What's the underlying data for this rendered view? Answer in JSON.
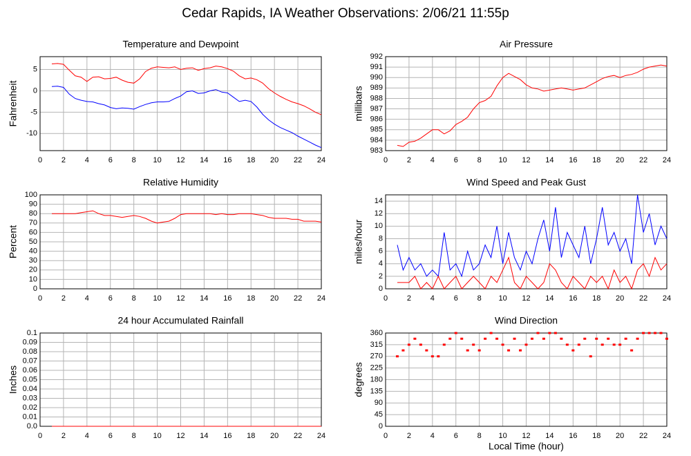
{
  "title": "Cedar Rapids, IA Weather Observations: 2/06/21 11:55p",
  "chart_data": [
    {
      "type": "line",
      "title": "Temperature and Dewpoint",
      "ylabel": "Fahrenheit",
      "x": [
        1,
        1.5,
        2,
        2.5,
        3,
        3.5,
        4,
        4.5,
        5,
        5.5,
        6,
        6.5,
        7,
        7.5,
        8,
        8.5,
        9,
        9.5,
        10,
        10.5,
        11,
        11.5,
        12,
        12.5,
        13,
        13.5,
        14,
        14.5,
        15,
        15.5,
        16,
        16.5,
        17,
        17.5,
        18,
        18.5,
        19,
        19.5,
        20,
        20.5,
        21,
        21.5,
        22,
        22.5,
        23,
        23.5,
        24
      ],
      "series": [
        {
          "color": "#ff0000",
          "values": [
            6.3,
            6.4,
            6.2,
            4.8,
            3.5,
            3.2,
            2.2,
            3.2,
            3.3,
            2.8,
            2.9,
            3.2,
            2.5,
            2.0,
            1.8,
            2.8,
            4.5,
            5.3,
            5.6,
            5.5,
            5.4,
            5.6,
            5.0,
            5.3,
            5.4,
            4.8,
            5.2,
            5.4,
            5.8,
            5.6,
            5.2,
            4.6,
            3.5,
            2.8,
            3.0,
            2.6,
            1.8,
            0.5,
            -0.5,
            -1.3,
            -2.0,
            -2.6,
            -3.0,
            -3.5,
            -4.2,
            -5.0,
            -5.6
          ]
        },
        {
          "color": "#0000ff",
          "values": [
            1.0,
            1.1,
            0.8,
            -0.8,
            -1.8,
            -2.2,
            -2.5,
            -2.6,
            -3.0,
            -3.3,
            -3.9,
            -4.2,
            -4.0,
            -4.1,
            -4.3,
            -3.7,
            -3.2,
            -2.8,
            -2.6,
            -2.6,
            -2.5,
            -1.8,
            -1.2,
            -0.2,
            0.0,
            -0.6,
            -0.5,
            0.0,
            0.3,
            -0.3,
            -0.5,
            -1.5,
            -2.5,
            -2.2,
            -2.5,
            -3.8,
            -5.5,
            -6.8,
            -7.8,
            -8.6,
            -9.2,
            -9.8,
            -10.6,
            -11.3,
            -12.0,
            -12.7,
            -13.3
          ]
        }
      ],
      "xlim": [
        0,
        24
      ],
      "xticks": [
        0,
        2,
        4,
        6,
        8,
        10,
        12,
        14,
        16,
        18,
        20,
        22,
        24
      ],
      "ylim": [
        -14,
        8
      ],
      "yticks": [
        -10,
        -5,
        0,
        5
      ],
      "grid": true
    },
    {
      "type": "line",
      "title": "Air Pressure",
      "ylabel": "millibars",
      "x": [
        1,
        1.5,
        2,
        2.5,
        3,
        3.5,
        4,
        4.5,
        5,
        5.5,
        6,
        6.5,
        7,
        7.5,
        8,
        8.5,
        9,
        9.5,
        10,
        10.5,
        11,
        11.5,
        12,
        12.5,
        13,
        13.5,
        14,
        14.5,
        15,
        15.5,
        16,
        16.5,
        17,
        17.5,
        18,
        18.5,
        19,
        19.5,
        20,
        20.5,
        21,
        21.5,
        22,
        22.5,
        23,
        23.5,
        24
      ],
      "series": [
        {
          "color": "#ff0000",
          "values": [
            983.5,
            983.4,
            983.8,
            983.9,
            984.2,
            984.6,
            985.0,
            985.0,
            984.6,
            984.9,
            985.5,
            985.8,
            986.2,
            987.0,
            987.6,
            987.8,
            988.2,
            989.2,
            990.0,
            990.4,
            990.1,
            989.8,
            989.3,
            989.0,
            988.9,
            988.7,
            988.8,
            988.9,
            989.0,
            988.9,
            988.8,
            988.9,
            989.0,
            989.3,
            989.6,
            989.9,
            990.1,
            990.2,
            990.0,
            990.2,
            990.3,
            990.5,
            990.8,
            991.0,
            991.1,
            991.2,
            991.1
          ]
        }
      ],
      "xlim": [
        0,
        24
      ],
      "xticks": [
        0,
        2,
        4,
        6,
        8,
        10,
        12,
        14,
        16,
        18,
        20,
        22,
        24
      ],
      "ylim": [
        983,
        992
      ],
      "yticks": [
        983,
        984,
        985,
        986,
        987,
        988,
        989,
        990,
        991,
        992
      ],
      "grid": true
    },
    {
      "type": "line",
      "title": "Relative Humidity",
      "ylabel": "Percent",
      "x": [
        1,
        1.5,
        2,
        2.5,
        3,
        3.5,
        4,
        4.5,
        5,
        5.5,
        6,
        6.5,
        7,
        7.5,
        8,
        8.5,
        9,
        9.5,
        10,
        10.5,
        11,
        11.5,
        12,
        12.5,
        13,
        13.5,
        14,
        14.5,
        15,
        15.5,
        16,
        16.5,
        17,
        17.5,
        18,
        18.5,
        19,
        19.5,
        20,
        20.5,
        21,
        21.5,
        22,
        22.5,
        23,
        23.5,
        24
      ],
      "series": [
        {
          "color": "#ff0000",
          "values": [
            80,
            80,
            80,
            80,
            80,
            81,
            82,
            83,
            80,
            78,
            78,
            77,
            76,
            77,
            78,
            77,
            75,
            72,
            70,
            71,
            72,
            75,
            79,
            80,
            80,
            80,
            80,
            80,
            79,
            80,
            79,
            79,
            80,
            80,
            80,
            79,
            78,
            76,
            75,
            75,
            75,
            74,
            74,
            72,
            72,
            72,
            71
          ]
        }
      ],
      "xlim": [
        0,
        24
      ],
      "xticks": [
        0,
        2,
        4,
        6,
        8,
        10,
        12,
        14,
        16,
        18,
        20,
        22,
        24
      ],
      "ylim": [
        0,
        100
      ],
      "yticks": [
        0,
        10,
        20,
        30,
        40,
        50,
        60,
        70,
        80,
        90,
        100
      ],
      "grid": true
    },
    {
      "type": "line",
      "title": "Wind Speed and Peak Gust",
      "ylabel": "miles/hour",
      "x": [
        1,
        1.5,
        2,
        2.5,
        3,
        3.5,
        4,
        4.5,
        5,
        5.5,
        6,
        6.5,
        7,
        7.5,
        8,
        8.5,
        9,
        9.5,
        10,
        10.5,
        11,
        11.5,
        12,
        12.5,
        13,
        13.5,
        14,
        14.5,
        15,
        15.5,
        16,
        16.5,
        17,
        17.5,
        18,
        18.5,
        19,
        19.5,
        20,
        20.5,
        21,
        21.5,
        22,
        22.5,
        23,
        23.5,
        24
      ],
      "series": [
        {
          "color": "#0000ff",
          "values": [
            7,
            3,
            5,
            3,
            4,
            2,
            3,
            2,
            9,
            3,
            4,
            2,
            6,
            3,
            4,
            7,
            5,
            10,
            4,
            9,
            5,
            3,
            6,
            4,
            8,
            11,
            6,
            13,
            5,
            9,
            7,
            5,
            10,
            4,
            8,
            13,
            7,
            9,
            6,
            8,
            4,
            15,
            9,
            12,
            7,
            10,
            8
          ]
        },
        {
          "color": "#ff0000",
          "values": [
            1,
            1,
            1,
            2,
            0,
            1,
            0,
            2,
            0,
            1,
            2,
            0,
            1,
            2,
            1,
            0,
            2,
            1,
            3,
            5,
            1,
            0,
            2,
            1,
            0,
            1,
            4,
            3,
            1,
            0,
            2,
            1,
            0,
            2,
            1,
            2,
            0,
            3,
            1,
            2,
            0,
            3,
            4,
            2,
            5,
            3,
            4
          ]
        }
      ],
      "xlim": [
        0,
        24
      ],
      "xticks": [
        0,
        2,
        4,
        6,
        8,
        10,
        12,
        14,
        16,
        18,
        20,
        22,
        24
      ],
      "ylim": [
        0,
        15
      ],
      "yticks": [
        0,
        2,
        4,
        6,
        8,
        10,
        12,
        14
      ],
      "grid": true
    },
    {
      "type": "line",
      "title": "24 hour Accumulated Rainfall",
      "ylabel": "Inches",
      "x": [
        1,
        24
      ],
      "series": [
        {
          "color": "#ff0000",
          "values": [
            0,
            0
          ]
        }
      ],
      "xlim": [
        0,
        24
      ],
      "xticks": [
        0,
        2,
        4,
        6,
        8,
        10,
        12,
        14,
        16,
        18,
        20,
        22,
        24
      ],
      "ylim": [
        0,
        0.1
      ],
      "yticks": [
        {
          "value": 0,
          "label": "0.0"
        },
        0.01,
        0.02,
        0.03,
        0.04,
        0.05,
        0.06,
        0.07,
        0.08,
        0.09,
        0.1
      ],
      "grid": true
    },
    {
      "type": "scatter",
      "title": "Wind Direction",
      "ylabel": "degrees",
      "xlabel": "Local Time (hour)",
      "x": [
        1,
        1.5,
        2,
        2.5,
        3,
        3.5,
        4,
        4.5,
        5,
        5.5,
        6,
        6.5,
        7,
        7.5,
        8,
        8.5,
        9,
        9.5,
        10,
        10.5,
        11,
        11.5,
        12,
        12.5,
        13,
        13.5,
        14,
        14.5,
        15,
        15.5,
        16,
        16.5,
        17,
        17.5,
        18,
        18.5,
        19,
        19.5,
        20,
        20.5,
        21,
        21.5,
        22,
        22.5,
        23,
        23.5,
        24
      ],
      "series": [
        {
          "color": "#ff0000",
          "values": [
            270,
            293,
            315,
            338,
            315,
            293,
            270,
            270,
            315,
            338,
            360,
            338,
            293,
            315,
            293,
            338,
            360,
            338,
            315,
            293,
            338,
            293,
            315,
            338,
            360,
            338,
            360,
            360,
            338,
            315,
            293,
            315,
            338,
            270,
            338,
            315,
            338,
            315,
            315,
            338,
            293,
            338,
            360,
            360,
            360,
            360,
            338
          ]
        }
      ],
      "xlim": [
        0,
        24
      ],
      "xticks": [
        0,
        2,
        4,
        6,
        8,
        10,
        12,
        14,
        16,
        18,
        20,
        22,
        24
      ],
      "ylim": [
        0,
        360
      ],
      "yticks": [
        0,
        45,
        90,
        135,
        180,
        225,
        270,
        315,
        360
      ],
      "grid": true
    }
  ]
}
